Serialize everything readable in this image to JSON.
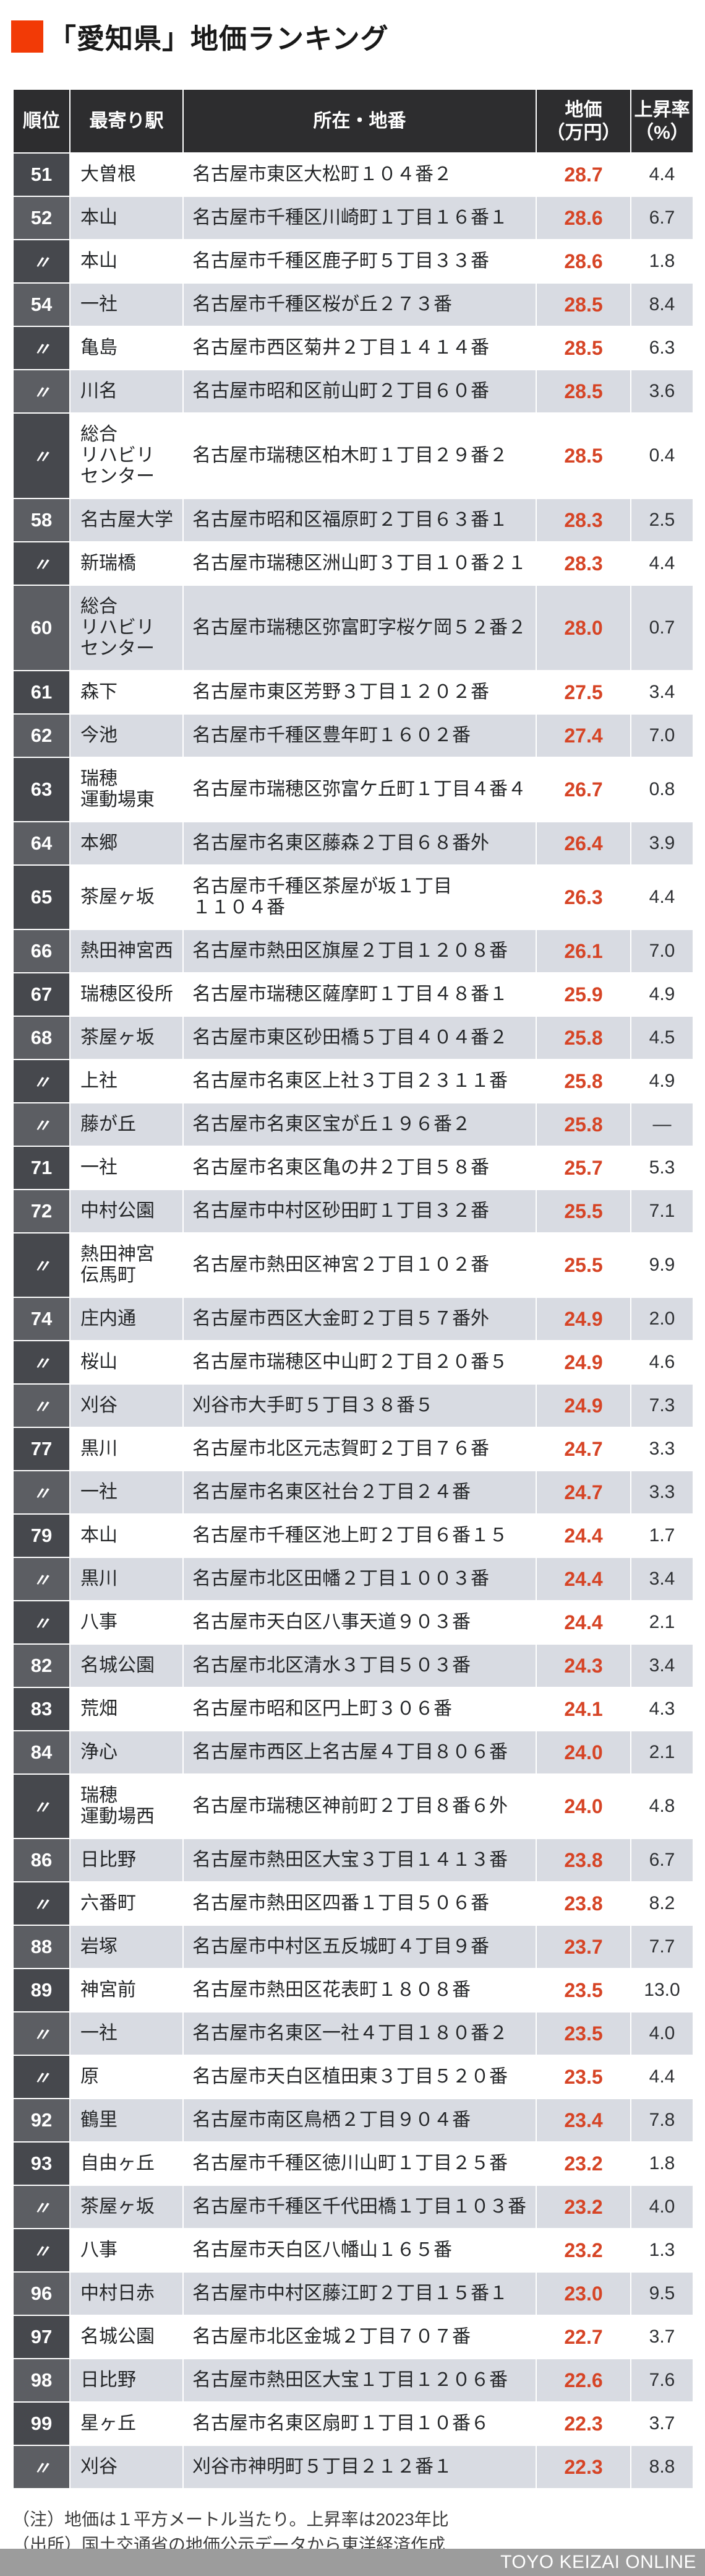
{
  "title": "「愛知県」地価ランキング",
  "colors": {
    "accent_square": "#f23a06",
    "price_text": "#d64425",
    "header_bg": "#2d2d2f",
    "row_alt_bg": "#d8dbe2",
    "rank_cell_dark": "#46484d",
    "rank_cell_light": "#5c5e63",
    "brand_bar_bg": "#9c9c9c"
  },
  "chart_data": {
    "type": "table",
    "title": "「愛知県」地価ランキング",
    "columns": [
      "順位",
      "最寄り駅",
      "所在・地番",
      "地価\n（万円）",
      "上昇率\n（%）"
    ],
    "rows": [
      {
        "rank": "51",
        "station": "大曽根",
        "address": "名古屋市東区大松町１０４番２",
        "price": "28.7",
        "rate": "4.4"
      },
      {
        "rank": "52",
        "station": "本山",
        "address": "名古屋市千種区川崎町１丁目１６番１",
        "price": "28.6",
        "rate": "6.7"
      },
      {
        "rank": "〃",
        "station": "本山",
        "address": "名古屋市千種区鹿子町５丁目３３番",
        "price": "28.6",
        "rate": "1.8"
      },
      {
        "rank": "54",
        "station": "一社",
        "address": "名古屋市千種区桜が丘２７３番",
        "price": "28.5",
        "rate": "8.4"
      },
      {
        "rank": "〃",
        "station": "亀島",
        "address": "名古屋市西区菊井２丁目１４１４番",
        "price": "28.5",
        "rate": "6.3"
      },
      {
        "rank": "〃",
        "station": "川名",
        "address": "名古屋市昭和区前山町２丁目６０番",
        "price": "28.5",
        "rate": "3.6"
      },
      {
        "rank": "〃",
        "station": "総合\nリハビリ\nセンター",
        "address": "名古屋市瑞穂区柏木町１丁目２９番２",
        "price": "28.5",
        "rate": "0.4"
      },
      {
        "rank": "58",
        "station": "名古屋大学",
        "address": "名古屋市昭和区福原町２丁目６３番１",
        "price": "28.3",
        "rate": "2.5"
      },
      {
        "rank": "〃",
        "station": "新瑞橋",
        "address": "名古屋市瑞穂区洲山町３丁目１０番２１",
        "price": "28.3",
        "rate": "4.4"
      },
      {
        "rank": "60",
        "station": "総合\nリハビリ\nセンター",
        "address": "名古屋市瑞穂区弥富町字桜ケ岡５２番２",
        "price": "28.0",
        "rate": "0.7"
      },
      {
        "rank": "61",
        "station": "森下",
        "address": "名古屋市東区芳野３丁目１２０２番",
        "price": "27.5",
        "rate": "3.4"
      },
      {
        "rank": "62",
        "station": "今池",
        "address": "名古屋市千種区豊年町１６０２番",
        "price": "27.4",
        "rate": "7.0"
      },
      {
        "rank": "63",
        "station": "瑞穂\n運動場東",
        "address": "名古屋市瑞穂区弥富ケ丘町１丁目４番４",
        "price": "26.7",
        "rate": "0.8"
      },
      {
        "rank": "64",
        "station": "本郷",
        "address": "名古屋市名東区藤森２丁目６８番外",
        "price": "26.4",
        "rate": "3.9"
      },
      {
        "rank": "65",
        "station": "茶屋ヶ坂",
        "address": "名古屋市千種区茶屋が坂１丁目\n１１０４番",
        "price": "26.3",
        "rate": "4.4"
      },
      {
        "rank": "66",
        "station": "熱田神宮西",
        "address": "名古屋市熱田区旗屋２丁目１２０８番",
        "price": "26.1",
        "rate": "7.0"
      },
      {
        "rank": "67",
        "station": "瑞穂区役所",
        "address": "名古屋市瑞穂区薩摩町１丁目４８番１",
        "price": "25.9",
        "rate": "4.9"
      },
      {
        "rank": "68",
        "station": "茶屋ヶ坂",
        "address": "名古屋市東区砂田橋５丁目４０４番２",
        "price": "25.8",
        "rate": "4.5"
      },
      {
        "rank": "〃",
        "station": "上社",
        "address": "名古屋市名東区上社３丁目２３１１番",
        "price": "25.8",
        "rate": "4.9"
      },
      {
        "rank": "〃",
        "station": "藤が丘",
        "address": "名古屋市名東区宝が丘１９６番２",
        "price": "25.8",
        "rate": "—"
      },
      {
        "rank": "71",
        "station": "一社",
        "address": "名古屋市名東区亀の井２丁目５８番",
        "price": "25.7",
        "rate": "5.3"
      },
      {
        "rank": "72",
        "station": "中村公園",
        "address": "名古屋市中村区砂田町１丁目３２番",
        "price": "25.5",
        "rate": "7.1"
      },
      {
        "rank": "〃",
        "station": "熱田神宮\n伝馬町",
        "address": "名古屋市熱田区神宮２丁目１０２番",
        "price": "25.5",
        "rate": "9.9"
      },
      {
        "rank": "74",
        "station": "庄内通",
        "address": "名古屋市西区大金町２丁目５７番外",
        "price": "24.9",
        "rate": "2.0"
      },
      {
        "rank": "〃",
        "station": "桜山",
        "address": "名古屋市瑞穂区中山町２丁目２０番５",
        "price": "24.9",
        "rate": "4.6"
      },
      {
        "rank": "〃",
        "station": "刈谷",
        "address": "刈谷市大手町５丁目３８番５",
        "price": "24.9",
        "rate": "7.3"
      },
      {
        "rank": "77",
        "station": "黒川",
        "address": "名古屋市北区元志賀町２丁目７６番",
        "price": "24.7",
        "rate": "3.3"
      },
      {
        "rank": "〃",
        "station": "一社",
        "address": "名古屋市名東区社台２丁目２４番",
        "price": "24.7",
        "rate": "3.3"
      },
      {
        "rank": "79",
        "station": "本山",
        "address": "名古屋市千種区池上町２丁目６番１５",
        "price": "24.4",
        "rate": "1.7"
      },
      {
        "rank": "〃",
        "station": "黒川",
        "address": "名古屋市北区田幡２丁目１００３番",
        "price": "24.4",
        "rate": "3.4"
      },
      {
        "rank": "〃",
        "station": "八事",
        "address": "名古屋市天白区八事天道９０３番",
        "price": "24.4",
        "rate": "2.1"
      },
      {
        "rank": "82",
        "station": "名城公園",
        "address": "名古屋市北区清水３丁目５０３番",
        "price": "24.3",
        "rate": "3.4"
      },
      {
        "rank": "83",
        "station": "荒畑",
        "address": "名古屋市昭和区円上町３０６番",
        "price": "24.1",
        "rate": "4.3"
      },
      {
        "rank": "84",
        "station": "浄心",
        "address": "名古屋市西区上名古屋４丁目８０６番",
        "price": "24.0",
        "rate": "2.1"
      },
      {
        "rank": "〃",
        "station": "瑞穂\n運動場西",
        "address": "名古屋市瑞穂区神前町２丁目８番６外",
        "price": "24.0",
        "rate": "4.8"
      },
      {
        "rank": "86",
        "station": "日比野",
        "address": "名古屋市熱田区大宝３丁目１４１３番",
        "price": "23.8",
        "rate": "6.7"
      },
      {
        "rank": "〃",
        "station": "六番町",
        "address": "名古屋市熱田区四番１丁目５０６番",
        "price": "23.8",
        "rate": "8.2"
      },
      {
        "rank": "88",
        "station": "岩塚",
        "address": "名古屋市中村区五反城町４丁目９番",
        "price": "23.7",
        "rate": "7.7"
      },
      {
        "rank": "89",
        "station": "神宮前",
        "address": "名古屋市熱田区花表町１８０８番",
        "price": "23.5",
        "rate": "13.0"
      },
      {
        "rank": "〃",
        "station": "一社",
        "address": "名古屋市名東区一社４丁目１８０番２",
        "price": "23.5",
        "rate": "4.0"
      },
      {
        "rank": "〃",
        "station": "原",
        "address": "名古屋市天白区植田東３丁目５２０番",
        "price": "23.5",
        "rate": "4.4"
      },
      {
        "rank": "92",
        "station": "鶴里",
        "address": "名古屋市南区鳥栖２丁目９０４番",
        "price": "23.4",
        "rate": "7.8"
      },
      {
        "rank": "93",
        "station": "自由ヶ丘",
        "address": "名古屋市千種区徳川山町１丁目２５番",
        "price": "23.2",
        "rate": "1.8"
      },
      {
        "rank": "〃",
        "station": "茶屋ヶ坂",
        "address": "名古屋市千種区千代田橋１丁目１０３番",
        "price": "23.2",
        "rate": "4.0"
      },
      {
        "rank": "〃",
        "station": "八事",
        "address": "名古屋市天白区八幡山１６５番",
        "price": "23.2",
        "rate": "1.3"
      },
      {
        "rank": "96",
        "station": "中村日赤",
        "address": "名古屋市中村区藤江町２丁目１５番１",
        "price": "23.0",
        "rate": "9.5"
      },
      {
        "rank": "97",
        "station": "名城公園",
        "address": "名古屋市北区金城２丁目７０７番",
        "price": "22.7",
        "rate": "3.7"
      },
      {
        "rank": "98",
        "station": "日比野",
        "address": "名古屋市熱田区大宝１丁目１２０６番",
        "price": "22.6",
        "rate": "7.6"
      },
      {
        "rank": "99",
        "station": "星ヶ丘",
        "address": "名古屋市名東区扇町１丁目１０番６",
        "price": "22.3",
        "rate": "3.7"
      },
      {
        "rank": "〃",
        "station": "刈谷",
        "address": "刈谷市神明町５丁目２１２番１",
        "price": "22.3",
        "rate": "8.8"
      }
    ]
  },
  "notes": [
    "（注）地価は１平方メートル当たり。上昇率は2023年比",
    "（出所）国土交通省の地価公示データから東洋経済作成"
  ],
  "brand": "TOYO KEIZAI ONLINE"
}
